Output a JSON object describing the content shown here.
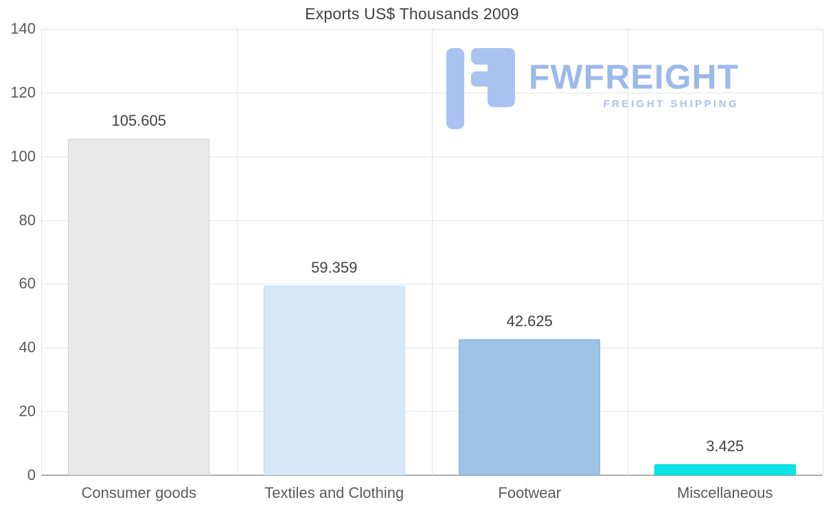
{
  "title": "Exports US$ Thousands 2009",
  "logo": {
    "name": "FWFREIGHT",
    "tagline": "FREIGHT SHIPPING",
    "icon_color": "#a9c3f0",
    "text_color": "#9db9ea"
  },
  "chart_data": {
    "type": "bar",
    "title": "Exports US$ Thousands 2009",
    "categories": [
      "Consumer goods",
      "Textiles and Clothing",
      "Footwear",
      "Miscellaneous"
    ],
    "values": [
      105.605,
      59.359,
      42.625,
      3.425
    ],
    "value_labels": [
      "105.605",
      "59.359",
      "42.625",
      "3.425"
    ],
    "bar_colors": [
      "#e8e8e8",
      "#d9e8f7",
      "#9cc3e5",
      "#0ae5e5"
    ],
    "bar_border_colors": [
      "#d3d3d3",
      "#c4dcf2",
      "#8ab4da",
      "#00d5d5"
    ],
    "xlabel": "",
    "ylabel": "",
    "ylim": [
      0,
      140
    ],
    "yticks": [
      0,
      20,
      40,
      60,
      80,
      100,
      120,
      140
    ],
    "grid": "both",
    "legend": "none"
  }
}
